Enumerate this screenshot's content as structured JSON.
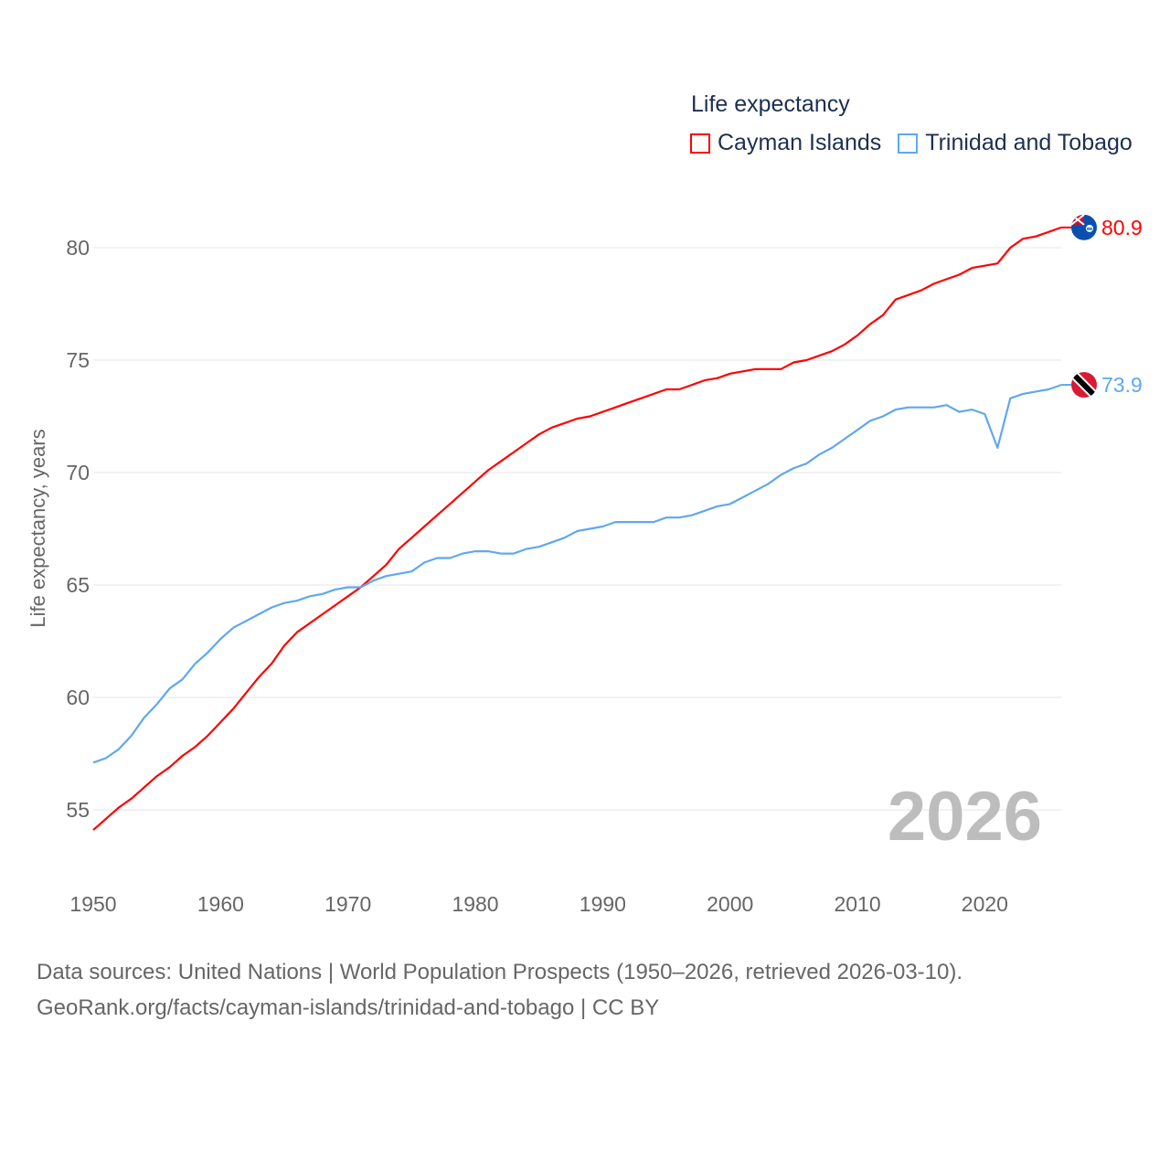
{
  "chart_data": {
    "type": "line",
    "title": "Life expectancy",
    "xlabel": "",
    "ylabel": "Life expectancy, years",
    "xlim": [
      1950,
      2026
    ],
    "ylim": [
      53.2,
      82
    ],
    "yticks": [
      55,
      60,
      65,
      70,
      75,
      80
    ],
    "xticks": [
      1950,
      1960,
      1970,
      1980,
      1990,
      2000,
      2010,
      2020
    ],
    "grid": true,
    "legend_position": "top-right",
    "current_year": "2026",
    "x_start": 1950,
    "series": [
      {
        "name": "Cayman Islands",
        "color": "#ff0000",
        "end_label": "80.9",
        "flag": "cayman-islands-flag",
        "values": [
          54.1,
          54.6,
          55.1,
          55.5,
          56.0,
          56.5,
          56.9,
          57.4,
          57.8,
          58.3,
          58.9,
          59.5,
          60.2,
          60.9,
          61.5,
          62.3,
          62.9,
          63.3,
          63.7,
          64.1,
          64.5,
          64.9,
          65.4,
          65.9,
          66.6,
          67.1,
          67.6,
          68.1,
          68.6,
          69.1,
          69.6,
          70.1,
          70.5,
          70.9,
          71.3,
          71.7,
          72.0,
          72.2,
          72.4,
          72.5,
          72.7,
          72.9,
          73.1,
          73.3,
          73.5,
          73.7,
          73.7,
          73.9,
          74.1,
          74.2,
          74.4,
          74.5,
          74.6,
          74.6,
          74.6,
          74.9,
          75.0,
          75.2,
          75.4,
          75.7,
          76.1,
          76.6,
          77.0,
          77.7,
          77.9,
          78.1,
          78.4,
          78.6,
          78.8,
          79.1,
          79.2,
          79.3,
          80.0,
          80.4,
          80.5,
          80.7,
          80.9
        ]
      },
      {
        "name": "Trinidad and Tobago",
        "color": "#5fa8ef",
        "end_label": "73.9",
        "flag": "trinidad-and-tobago-flag",
        "values": [
          57.1,
          57.3,
          57.7,
          58.3,
          59.1,
          59.7,
          60.4,
          60.8,
          61.5,
          62.0,
          62.6,
          63.1,
          63.4,
          63.7,
          64.0,
          64.2,
          64.3,
          64.5,
          64.6,
          64.8,
          64.9,
          64.9,
          65.2,
          65.4,
          65.5,
          65.6,
          66.0,
          66.2,
          66.2,
          66.4,
          66.5,
          66.5,
          66.4,
          66.4,
          66.6,
          66.7,
          66.9,
          67.1,
          67.4,
          67.5,
          67.6,
          67.8,
          67.8,
          67.8,
          67.8,
          68.0,
          68.0,
          68.1,
          68.3,
          68.5,
          68.6,
          68.9,
          69.2,
          69.5,
          69.9,
          70.2,
          70.4,
          70.8,
          71.1,
          71.5,
          71.9,
          72.3,
          72.5,
          72.8,
          72.9,
          72.9,
          72.9,
          73.0,
          72.7,
          72.8,
          72.6,
          71.1,
          73.3,
          73.5,
          73.6,
          73.7,
          73.9
        ]
      }
    ]
  },
  "source": {
    "line1": "Data sources: United Nations | World Population Prospects (1950–2026, retrieved 2026-03-10).",
    "line2": "GeoRank.org/facts/cayman-islands/trinidad-and-tobago | CC BY"
  }
}
